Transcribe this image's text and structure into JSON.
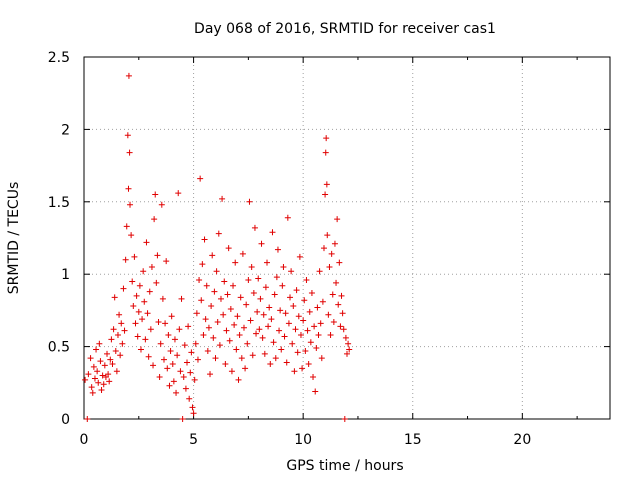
{
  "chart_data": {
    "type": "scatter",
    "title": "Day 068 of 2016, SRMTID for receiver cas1",
    "xlabel": "GPS time / hours",
    "ylabel": "SRMTID / TECUs",
    "xlim": [
      0,
      24
    ],
    "ylim": [
      0,
      2.5
    ],
    "x_ticks": [
      0,
      5,
      10,
      15,
      20
    ],
    "x_tick_labels": [
      "0",
      "5",
      "10",
      "15",
      "20"
    ],
    "y_ticks": [
      0,
      0.5,
      1,
      1.5,
      2,
      2.5
    ],
    "y_tick_labels": [
      "0",
      "0.5",
      "1",
      "1.5",
      "2",
      "2.5"
    ],
    "grid": true,
    "marker": "plus",
    "series": [
      {
        "name": "SRMTID",
        "color": "#e00000",
        "points": [
          [
            0.05,
            0.27
          ],
          [
            0.15,
            0.0
          ],
          [
            0.2,
            0.31
          ],
          [
            0.3,
            0.42
          ],
          [
            0.35,
            0.22
          ],
          [
            0.4,
            0.18
          ],
          [
            0.45,
            0.36
          ],
          [
            0.5,
            0.28
          ],
          [
            0.55,
            0.48
          ],
          [
            0.6,
            0.33
          ],
          [
            0.65,
            0.25
          ],
          [
            0.7,
            0.52
          ],
          [
            0.75,
            0.4
          ],
          [
            0.8,
            0.2
          ],
          [
            0.85,
            0.3
          ],
          [
            0.9,
            0.24
          ],
          [
            0.95,
            0.37
          ],
          [
            1.0,
            0.29
          ],
          [
            1.05,
            0.45
          ],
          [
            1.1,
            0.31
          ],
          [
            1.15,
            0.26
          ],
          [
            1.2,
            0.41
          ],
          [
            1.25,
            0.55
          ],
          [
            1.3,
            0.38
          ],
          [
            1.35,
            0.62
          ],
          [
            1.4,
            0.84
          ],
          [
            1.45,
            0.47
          ],
          [
            1.5,
            0.33
          ],
          [
            1.55,
            0.58
          ],
          [
            1.6,
            0.72
          ],
          [
            1.65,
            0.44
          ],
          [
            1.7,
            0.66
          ],
          [
            1.75,
            0.52
          ],
          [
            1.8,
            0.9
          ],
          [
            1.85,
            0.61
          ],
          [
            1.9,
            1.1
          ],
          [
            1.95,
            1.33
          ],
          [
            2.0,
            1.96
          ],
          [
            2.03,
            1.59
          ],
          [
            2.05,
            2.37
          ],
          [
            2.08,
            1.84
          ],
          [
            2.1,
            1.48
          ],
          [
            2.15,
            1.27
          ],
          [
            2.2,
            0.95
          ],
          [
            2.25,
            0.78
          ],
          [
            2.3,
            1.12
          ],
          [
            2.35,
            0.66
          ],
          [
            2.4,
            0.85
          ],
          [
            2.45,
            0.57
          ],
          [
            2.5,
            0.74
          ],
          [
            2.55,
            0.92
          ],
          [
            2.6,
            0.48
          ],
          [
            2.65,
            0.69
          ],
          [
            2.7,
            1.02
          ],
          [
            2.75,
            0.81
          ],
          [
            2.8,
            0.55
          ],
          [
            2.85,
            1.22
          ],
          [
            2.9,
            0.73
          ],
          [
            2.95,
            0.43
          ],
          [
            3.0,
            0.88
          ],
          [
            3.05,
            0.62
          ],
          [
            3.1,
            1.05
          ],
          [
            3.15,
            0.37
          ],
          [
            3.2,
            1.38
          ],
          [
            3.25,
            1.55
          ],
          [
            3.3,
            0.94
          ],
          [
            3.35,
            1.13
          ],
          [
            3.4,
            0.67
          ],
          [
            3.45,
            0.29
          ],
          [
            3.5,
            0.52
          ],
          [
            3.55,
            1.48
          ],
          [
            3.6,
            0.83
          ],
          [
            3.65,
            0.41
          ],
          [
            3.7,
            0.66
          ],
          [
            3.75,
            1.09
          ],
          [
            3.8,
            0.35
          ],
          [
            3.85,
            0.58
          ],
          [
            3.9,
            0.23
          ],
          [
            3.95,
            0.47
          ],
          [
            4.0,
            0.71
          ],
          [
            4.05,
            0.38
          ],
          [
            4.1,
            0.26
          ],
          [
            4.15,
            0.55
          ],
          [
            4.2,
            0.18
          ],
          [
            4.25,
            0.44
          ],
          [
            4.3,
            1.56
          ],
          [
            4.35,
            0.62
          ],
          [
            4.4,
            0.33
          ],
          [
            4.45,
            0.83
          ],
          [
            4.5,
            0.0
          ],
          [
            4.55,
            0.29
          ],
          [
            4.6,
            0.51
          ],
          [
            4.65,
            0.21
          ],
          [
            4.7,
            0.39
          ],
          [
            4.75,
            0.64
          ],
          [
            4.8,
            0.14
          ],
          [
            4.85,
            0.32
          ],
          [
            4.9,
            0.46
          ],
          [
            4.95,
            0.08
          ],
          [
            5.0,
            0.04
          ],
          [
            5.05,
            0.27
          ],
          [
            5.1,
            0.52
          ],
          [
            5.15,
            0.73
          ],
          [
            5.2,
            0.41
          ],
          [
            5.25,
            0.96
          ],
          [
            5.3,
            1.66
          ],
          [
            5.35,
            0.82
          ],
          [
            5.4,
            1.07
          ],
          [
            5.45,
            0.58
          ],
          [
            5.5,
            1.24
          ],
          [
            5.55,
            0.69
          ],
          [
            5.6,
            0.92
          ],
          [
            5.65,
            0.47
          ],
          [
            5.7,
            0.63
          ],
          [
            5.75,
            0.31
          ],
          [
            5.8,
            0.78
          ],
          [
            5.85,
            1.13
          ],
          [
            5.9,
            0.56
          ],
          [
            5.95,
            0.88
          ],
          [
            6.0,
            0.42
          ],
          [
            6.05,
            1.02
          ],
          [
            6.1,
            0.67
          ],
          [
            6.15,
            1.28
          ],
          [
            6.2,
            0.51
          ],
          [
            6.25,
            0.83
          ],
          [
            6.3,
            1.52
          ],
          [
            6.35,
            0.72
          ],
          [
            6.4,
            0.95
          ],
          [
            6.45,
            0.38
          ],
          [
            6.5,
            0.61
          ],
          [
            6.55,
            0.86
          ],
          [
            6.6,
            1.18
          ],
          [
            6.65,
            0.54
          ],
          [
            6.7,
            0.76
          ],
          [
            6.75,
            0.33
          ],
          [
            6.8,
            0.92
          ],
          [
            6.85,
            0.65
          ],
          [
            6.9,
            1.08
          ],
          [
            6.95,
            0.48
          ],
          [
            7.0,
            0.71
          ],
          [
            7.05,
            0.27
          ],
          [
            7.1,
            0.58
          ],
          [
            7.15,
            0.84
          ],
          [
            7.2,
            0.42
          ],
          [
            7.25,
            1.14
          ],
          [
            7.3,
            0.63
          ],
          [
            7.35,
            0.35
          ],
          [
            7.4,
            0.79
          ],
          [
            7.45,
            0.52
          ],
          [
            7.5,
            0.96
          ],
          [
            7.55,
            1.5
          ],
          [
            7.6,
            0.68
          ],
          [
            7.65,
            1.05
          ],
          [
            7.7,
            0.44
          ],
          [
            7.75,
            0.87
          ],
          [
            7.8,
            1.32
          ],
          [
            7.85,
            0.59
          ],
          [
            7.9,
            0.74
          ],
          [
            7.95,
            0.97
          ],
          [
            8.0,
            0.62
          ],
          [
            8.05,
            0.83
          ],
          [
            8.1,
            1.21
          ],
          [
            8.15,
            0.56
          ],
          [
            8.2,
            0.72
          ],
          [
            8.25,
            0.45
          ],
          [
            8.3,
            0.91
          ],
          [
            8.35,
            1.08
          ],
          [
            8.4,
            0.64
          ],
          [
            8.45,
            0.77
          ],
          [
            8.5,
            0.38
          ],
          [
            8.55,
            0.69
          ],
          [
            8.6,
            1.29
          ],
          [
            8.65,
            0.53
          ],
          [
            8.7,
            0.86
          ],
          [
            8.75,
            0.42
          ],
          [
            8.8,
            0.98
          ],
          [
            8.85,
            1.17
          ],
          [
            8.9,
            0.61
          ],
          [
            8.95,
            0.75
          ],
          [
            9.0,
            0.48
          ],
          [
            9.05,
            0.92
          ],
          [
            9.1,
            1.05
          ],
          [
            9.15,
            0.57
          ],
          [
            9.2,
            0.73
          ],
          [
            9.25,
            0.39
          ],
          [
            9.3,
            1.39
          ],
          [
            9.35,
            0.66
          ],
          [
            9.4,
            0.84
          ],
          [
            9.45,
            1.02
          ],
          [
            9.5,
            0.52
          ],
          [
            9.55,
            0.78
          ],
          [
            9.6,
            0.33
          ],
          [
            9.65,
            0.62
          ],
          [
            9.7,
            0.89
          ],
          [
            9.75,
            0.46
          ],
          [
            9.8,
            0.71
          ],
          [
            9.85,
            1.12
          ],
          [
            9.9,
            0.58
          ],
          [
            9.95,
            0.35
          ],
          [
            10.0,
            0.68
          ],
          [
            10.05,
            0.82
          ],
          [
            10.1,
            0.47
          ],
          [
            10.15,
            0.96
          ],
          [
            10.2,
            0.61
          ],
          [
            10.25,
            0.38
          ],
          [
            10.3,
            0.74
          ],
          [
            10.35,
            0.53
          ],
          [
            10.4,
            0.87
          ],
          [
            10.45,
            0.29
          ],
          [
            10.5,
            0.64
          ],
          [
            10.55,
            0.19
          ],
          [
            10.6,
            0.49
          ],
          [
            10.65,
            0.77
          ],
          [
            10.7,
            0.58
          ],
          [
            10.75,
            1.02
          ],
          [
            10.8,
            0.66
          ],
          [
            10.85,
            0.42
          ],
          [
            10.9,
            0.81
          ],
          [
            10.95,
            1.18
          ],
          [
            11.0,
            1.55
          ],
          [
            11.03,
            1.84
          ],
          [
            11.05,
            1.94
          ],
          [
            11.08,
            1.62
          ],
          [
            11.1,
            1.27
          ],
          [
            11.15,
            0.72
          ],
          [
            11.2,
            1.05
          ],
          [
            11.25,
            0.58
          ],
          [
            11.3,
            1.14
          ],
          [
            11.35,
            0.86
          ],
          [
            11.4,
            0.67
          ],
          [
            11.45,
            1.21
          ],
          [
            11.5,
            0.94
          ],
          [
            11.55,
            1.38
          ],
          [
            11.6,
            0.79
          ],
          [
            11.65,
            1.08
          ],
          [
            11.7,
            0.64
          ],
          [
            11.75,
            0.85
          ],
          [
            11.8,
            0.73
          ],
          [
            11.85,
            0.62
          ],
          [
            11.9,
            0.0
          ],
          [
            11.95,
            0.56
          ],
          [
            12.0,
            0.45
          ],
          [
            12.05,
            0.52
          ],
          [
            12.1,
            0.48
          ]
        ]
      }
    ]
  }
}
